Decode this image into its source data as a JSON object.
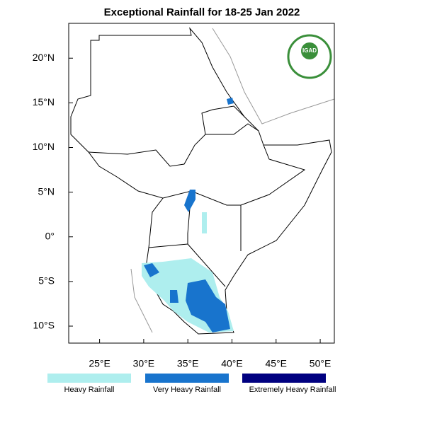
{
  "chart_data": {
    "type": "map",
    "title": "Exceptional Rainfall for 18-25 Jan 2022",
    "logo_text": "IGAD",
    "xlim": [
      21.5,
      51.6
    ],
    "ylim": [
      -11.9,
      23.9
    ],
    "xticks": [
      {
        "value": 25,
        "label": "25°E"
      },
      {
        "value": 30,
        "label": "30°E"
      },
      {
        "value": 35,
        "label": "35°E"
      },
      {
        "value": 40,
        "label": "40°E"
      },
      {
        "value": 45,
        "label": "45°E"
      },
      {
        "value": 50,
        "label": "50°E"
      }
    ],
    "yticks": [
      {
        "value": 20,
        "label": "20°N"
      },
      {
        "value": 15,
        "label": "15°N"
      },
      {
        "value": 10,
        "label": "10°N"
      },
      {
        "value": 5,
        "label": "5°N"
      },
      {
        "value": 0,
        "label": "0°"
      },
      {
        "value": -5,
        "label": "5°S"
      },
      {
        "value": -10,
        "label": "10°S"
      }
    ],
    "legend": [
      {
        "name": "Heavy Rainfall",
        "color": "#aeeeee"
      },
      {
        "name": "Very Heavy Rainfall",
        "color": "#1874cd"
      },
      {
        "name": "Extremely Heavy Rainfall",
        "color": "#000080"
      }
    ]
  }
}
